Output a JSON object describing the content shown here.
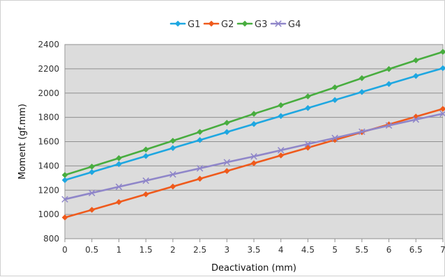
{
  "chart_data": {
    "type": "line",
    "title": "",
    "xlabel": "Deactivation (mm)",
    "ylabel": "Moment (gf.mm)",
    "x": [
      0,
      0.5,
      1,
      1.5,
      2,
      2.5,
      3,
      3.5,
      4,
      4.5,
      5,
      5.5,
      6,
      6.5,
      7
    ],
    "xticks": [
      "0",
      "0.5",
      "1",
      "1.5",
      "2",
      "2.5",
      "3",
      "3.5",
      "4",
      "4.5",
      "5",
      "5.5",
      "6",
      "6.5",
      "7"
    ],
    "yticks": [
      "800",
      "1000",
      "1200",
      "1400",
      "1600",
      "1800",
      "2000",
      "2200",
      "2400"
    ],
    "xlim": [
      0,
      7
    ],
    "ylim": [
      800,
      2400
    ],
    "grid": true,
    "legend_position": "top",
    "series": [
      {
        "name": "G1",
        "color": "#1ea7e1",
        "marker": "diamond",
        "values": [
          1283,
          1349,
          1415,
          1481,
          1547,
          1613,
          1679,
          1745,
          1811,
          1877,
          1943,
          2009,
          2075,
          2141,
          2205
        ]
      },
      {
        "name": "G2",
        "color": "#ef5a1c",
        "marker": "diamond",
        "values": [
          975,
          1038,
          1102,
          1166,
          1230,
          1294,
          1358,
          1422,
          1486,
          1550,
          1614,
          1678,
          1742,
          1806,
          1870
        ]
      },
      {
        "name": "G3",
        "color": "#48ad3f",
        "marker": "diamond",
        "values": [
          1325,
          1394,
          1464,
          1535,
          1607,
          1680,
          1755,
          1829,
          1900,
          1973,
          2047,
          2123,
          2198,
          2270,
          2340
        ]
      },
      {
        "name": "G4",
        "color": "#8f86c9",
        "marker": "x",
        "values": [
          1125,
          1177,
          1228,
          1278,
          1330,
          1380,
          1430,
          1478,
          1529,
          1580,
          1630,
          1682,
          1733,
          1782,
          1830
        ]
      }
    ]
  }
}
